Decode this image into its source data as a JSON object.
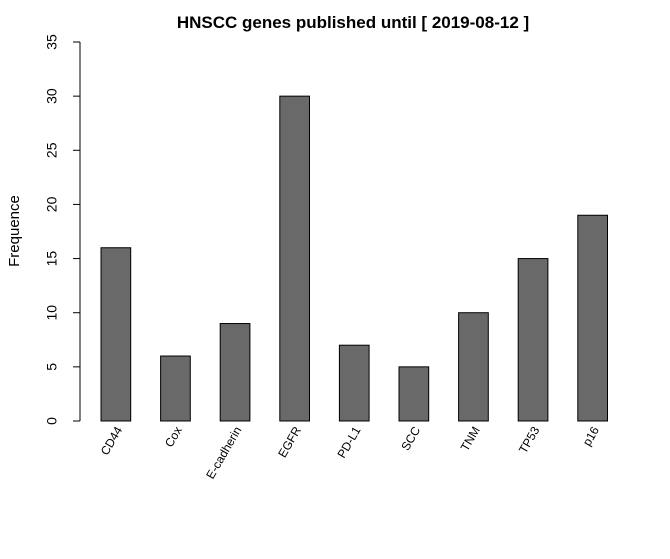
{
  "chart_data": {
    "type": "bar",
    "title": "HNSCC genes published until [ 2019-08-12 ]",
    "xlabel": "",
    "ylabel": "Frequence",
    "categories": [
      "CD44",
      "Cox",
      "E-cadherin",
      "EGFR",
      "PD-L1",
      "SCC",
      "TNM",
      "TP53",
      "p16"
    ],
    "values": [
      16,
      6,
      9,
      30,
      7,
      5,
      10,
      15,
      19
    ],
    "ylim": [
      0,
      35
    ],
    "yticks": [
      0,
      5,
      10,
      15,
      20,
      25,
      30,
      35
    ],
    "grid": false,
    "legend": "none",
    "bar_color": "#696969"
  }
}
